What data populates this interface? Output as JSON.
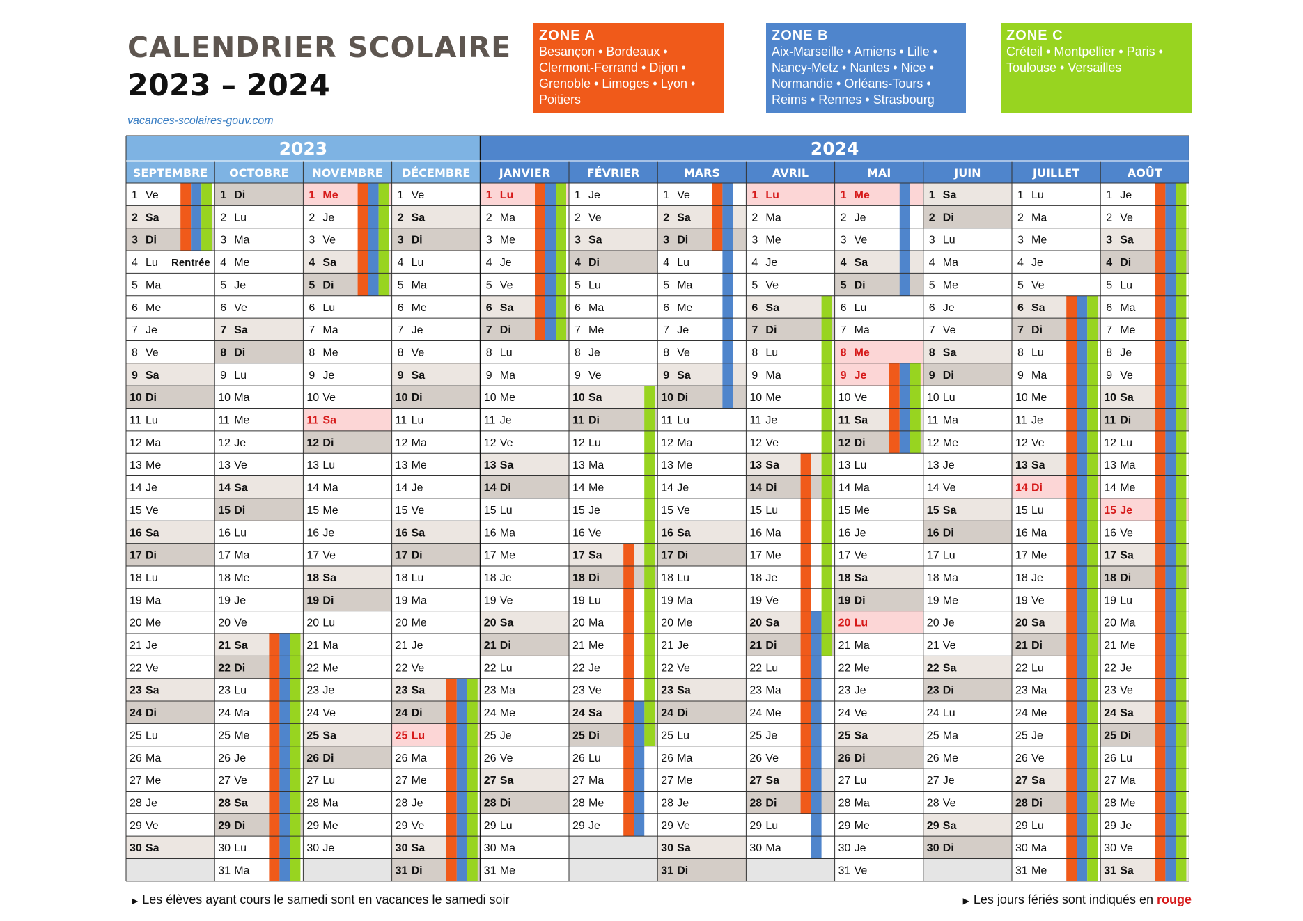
{
  "header": {
    "title_line1": "CALENDRIER SCOLAIRE",
    "title_line2": "2023 – 2024",
    "website": "vacances-scolaires-gouv.com"
  },
  "zones": [
    {
      "name": "ZONE A",
      "cities": "Besançon • Bordeaux • Clermont-Ferrand • Dijon • Grenoble • Limoges • Lyon • Poitiers",
      "color": "#f05a1a"
    },
    {
      "name": "ZONE B",
      "cities": "Aix-Marseille • Amiens • Lille • Nancy-Metz • Nantes • Nice • Normandie • Orléans-Tours • Reims • Rennes • Strasbourg",
      "color": "#4f85cc"
    },
    {
      "name": "ZONE C",
      "cities": "Créteil • Montpellier • Paris • Toulouse • Versailles",
      "color": "#98d420"
    }
  ],
  "years": [
    "2023",
    "2024"
  ],
  "months": [
    {
      "name": "SEPTEMBRE",
      "days": 30,
      "start_dow": 4,
      "holidays": []
    },
    {
      "name": "OCTOBRE",
      "days": 31,
      "start_dow": 6,
      "holidays": []
    },
    {
      "name": "NOVEMBRE",
      "days": 30,
      "start_dow": 2,
      "holidays": [
        1,
        11
      ]
    },
    {
      "name": "DÉCEMBRE",
      "days": 31,
      "start_dow": 4,
      "holidays": [
        25
      ]
    },
    {
      "name": "JANVIER",
      "days": 31,
      "start_dow": 0,
      "holidays": [
        1
      ]
    },
    {
      "name": "FÉVRIER",
      "days": 29,
      "start_dow": 3,
      "holidays": []
    },
    {
      "name": "MARS",
      "days": 31,
      "start_dow": 4,
      "holidays": []
    },
    {
      "name": "AVRIL",
      "days": 30,
      "start_dow": 0,
      "holidays": [
        1
      ]
    },
    {
      "name": "MAI",
      "days": 31,
      "start_dow": 2,
      "holidays": [
        1,
        8,
        9,
        20
      ]
    },
    {
      "name": "JUIN",
      "days": 30,
      "start_dow": 5,
      "holidays": []
    },
    {
      "name": "JUILLET",
      "days": 31,
      "start_dow": 0,
      "holidays": [
        14
      ]
    },
    {
      "name": "AOÛT",
      "days": 31,
      "start_dow": 3,
      "holidays": [
        15
      ]
    }
  ],
  "weekday_abbr": [
    "Lu",
    "Ma",
    "Me",
    "Je",
    "Ve",
    "Sa",
    "Di"
  ],
  "rentree": {
    "month": 0,
    "day": 4,
    "label": "Rentrée"
  },
  "vacation_bars": [
    {
      "month": 0,
      "zone": "A",
      "from": 1,
      "to": 3
    },
    {
      "month": 0,
      "zone": "B",
      "from": 1,
      "to": 3
    },
    {
      "month": 0,
      "zone": "C",
      "from": 1,
      "to": 3
    },
    {
      "month": 1,
      "zone": "A",
      "from": 21,
      "to": 31
    },
    {
      "month": 1,
      "zone": "B",
      "from": 21,
      "to": 31
    },
    {
      "month": 1,
      "zone": "C",
      "from": 21,
      "to": 31
    },
    {
      "month": 2,
      "zone": "A",
      "from": 1,
      "to": 5
    },
    {
      "month": 2,
      "zone": "B",
      "from": 1,
      "to": 5
    },
    {
      "month": 2,
      "zone": "C",
      "from": 1,
      "to": 5
    },
    {
      "month": 3,
      "zone": "A",
      "from": 23,
      "to": 31
    },
    {
      "month": 3,
      "zone": "B",
      "from": 23,
      "to": 31
    },
    {
      "month": 3,
      "zone": "C",
      "from": 23,
      "to": 31
    },
    {
      "month": 4,
      "zone": "A",
      "from": 1,
      "to": 7
    },
    {
      "month": 4,
      "zone": "B",
      "from": 1,
      "to": 7
    },
    {
      "month": 4,
      "zone": "C",
      "from": 1,
      "to": 7
    },
    {
      "month": 5,
      "zone": "C",
      "from": 10,
      "to": 25
    },
    {
      "month": 5,
      "zone": "A",
      "from": 17,
      "to": 29
    },
    {
      "month": 5,
      "zone": "B",
      "from": 24,
      "to": 29
    },
    {
      "month": 6,
      "zone": "A",
      "from": 1,
      "to": 3
    },
    {
      "month": 6,
      "zone": "B",
      "from": 1,
      "to": 10
    },
    {
      "month": 7,
      "zone": "A",
      "from": 13,
      "to": 28
    },
    {
      "month": 7,
      "zone": "B",
      "from": 20,
      "to": 30
    },
    {
      "month": 7,
      "zone": "C",
      "from": 6,
      "to": 21
    },
    {
      "month": 8,
      "zone": "B",
      "from": 1,
      "to": 5
    },
    {
      "month": 8,
      "zone": "A",
      "from": 9,
      "to": 12
    },
    {
      "month": 8,
      "zone": "B",
      "from": 9,
      "to": 12
    },
    {
      "month": 8,
      "zone": "C",
      "from": 9,
      "to": 12
    },
    {
      "month": 10,
      "zone": "A",
      "from": 6,
      "to": 31
    },
    {
      "month": 10,
      "zone": "B",
      "from": 6,
      "to": 31
    },
    {
      "month": 10,
      "zone": "C",
      "from": 6,
      "to": 31
    },
    {
      "month": 11,
      "zone": "A",
      "from": 1,
      "to": 31
    },
    {
      "month": 11,
      "zone": "B",
      "from": 1,
      "to": 31
    },
    {
      "month": 11,
      "zone": "C",
      "from": 1,
      "to": 31
    }
  ],
  "colors": {
    "year_2023_bg": "#7eb3e3",
    "year_2024_bg": "#4f85cc",
    "saturday_bg": "#ece6e1",
    "sunday_bg": "#d4cdc7",
    "holiday_bg": "#fcd6d6",
    "holiday_text": "#d61a1a",
    "empty_bg": "#e5e5e5",
    "grid": "#333333"
  },
  "footer": {
    "note_left": "Les élèves ayant cours le samedi sont en vacances le samedi soir",
    "note_right_prefix": "Les jours fériés sont indiqués en",
    "note_right_red": "rouge"
  }
}
